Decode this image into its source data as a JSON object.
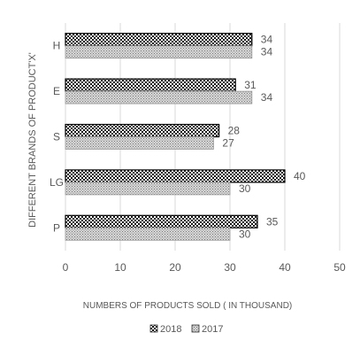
{
  "chart_data": {
    "type": "bar",
    "orientation": "horizontal",
    "categories": [
      "H",
      "E",
      "S",
      "LG",
      "P"
    ],
    "series": [
      {
        "name": "2018",
        "values": [
          34,
          31,
          28,
          40,
          35
        ],
        "pattern": "checker-dense"
      },
      {
        "name": "2017",
        "values": [
          34,
          34,
          27,
          30,
          30
        ],
        "pattern": "checker-light"
      }
    ],
    "xlabel": "NUMBERS OF PRODUCTS SOLD ( IN THOUSAND)",
    "ylabel": "DIFFERENT BRANDS OF PRODUCT'X'",
    "xlim": [
      0,
      50
    ],
    "xticks": [
      0,
      10,
      20,
      30,
      40,
      50
    ],
    "grid": true,
    "legend_position": "bottom",
    "colors": {
      "bar_stroke": "#000000",
      "pattern_dark": "#000000",
      "pattern_light": "#8c8c8c",
      "text": "#595959",
      "grid": "#d9d9d9"
    }
  }
}
